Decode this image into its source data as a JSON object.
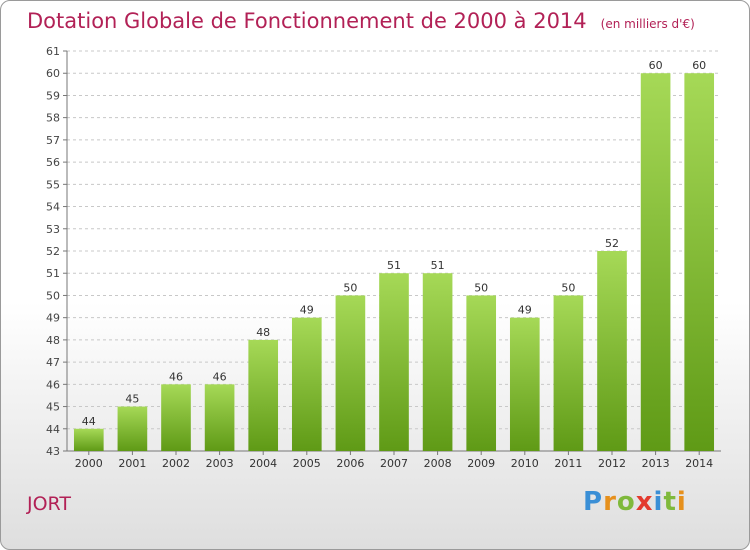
{
  "title": "Dotation Globale de Fonctionnement de 2000 à 2014",
  "unit_note": "(en milliers d'€)",
  "commune": "JORT",
  "logo_text": [
    "P",
    "r",
    "o",
    "x",
    "i",
    "t",
    "i"
  ],
  "logo_colors": [
    "#3a8fd6",
    "#e6901c",
    "#7fb93c",
    "#e33a2e",
    "#3a8fd6",
    "#7fb93c",
    "#e6901c"
  ],
  "colors": {
    "title": "#b22156",
    "bar_light": "#a6d957",
    "bar_dark": "#5f9a16",
    "grid": "#c8c8c8"
  },
  "chart_data": {
    "type": "bar",
    "title": "Dotation Globale de Fonctionnement de 2000 à 2014",
    "categories": [
      "2000",
      "2001",
      "2002",
      "2003",
      "2004",
      "2005",
      "2006",
      "2007",
      "2008",
      "2009",
      "2010",
      "2011",
      "2012",
      "2013",
      "2014"
    ],
    "values": [
      44,
      45,
      46,
      46,
      48,
      49,
      50,
      51,
      51,
      50,
      49,
      50,
      52,
      60,
      60
    ],
    "ylim": [
      43,
      61
    ],
    "yticks": [
      43,
      44,
      45,
      46,
      47,
      48,
      49,
      50,
      51,
      52,
      53,
      54,
      55,
      56,
      57,
      58,
      59,
      60,
      61
    ],
    "grid": true,
    "data_labels": true
  }
}
